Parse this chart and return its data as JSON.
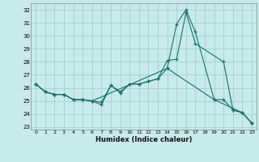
{
  "title": "",
  "xlabel": "Humidex (Indice chaleur)",
  "bg_color": "#c8eaea",
  "grid_color": "#a8d4d4",
  "line_color": "#1a7068",
  "xlim": [
    -0.5,
    23.5
  ],
  "ylim": [
    22.8,
    32.5
  ],
  "xticks": [
    0,
    1,
    2,
    3,
    4,
    5,
    6,
    7,
    8,
    9,
    10,
    11,
    12,
    13,
    14,
    15,
    16,
    17,
    18,
    19,
    20,
    21,
    22,
    23
  ],
  "yticks": [
    23,
    24,
    25,
    26,
    27,
    28,
    29,
    30,
    31,
    32
  ],
  "line1_x": [
    0,
    1,
    2,
    3,
    4,
    5,
    6,
    7,
    8,
    9,
    10,
    11,
    12,
    13,
    14,
    15,
    16,
    17,
    20,
    21,
    22,
    23
  ],
  "line1_y": [
    26.3,
    25.7,
    25.5,
    25.5,
    25.1,
    25.1,
    25.0,
    24.7,
    26.2,
    25.7,
    26.3,
    26.3,
    26.5,
    26.7,
    28.1,
    28.2,
    31.8,
    29.4,
    28.0,
    24.3,
    24.1,
    23.3
  ],
  "line2_x": [
    0,
    1,
    2,
    3,
    4,
    5,
    6,
    7,
    8,
    9,
    10,
    11,
    12,
    13,
    14,
    15,
    16,
    17,
    19,
    20,
    21,
    22,
    23
  ],
  "line2_y": [
    26.3,
    25.7,
    25.5,
    25.5,
    25.1,
    25.1,
    25.0,
    24.9,
    26.2,
    25.6,
    26.3,
    26.3,
    26.5,
    26.7,
    27.5,
    30.9,
    32.0,
    30.3,
    25.1,
    25.1,
    24.3,
    24.1,
    23.3
  ],
  "line3_x": [
    0,
    1,
    2,
    3,
    4,
    5,
    6,
    14,
    19,
    22,
    23
  ],
  "line3_y": [
    26.3,
    25.7,
    25.5,
    25.5,
    25.1,
    25.1,
    25.0,
    27.5,
    25.1,
    24.1,
    23.3
  ]
}
